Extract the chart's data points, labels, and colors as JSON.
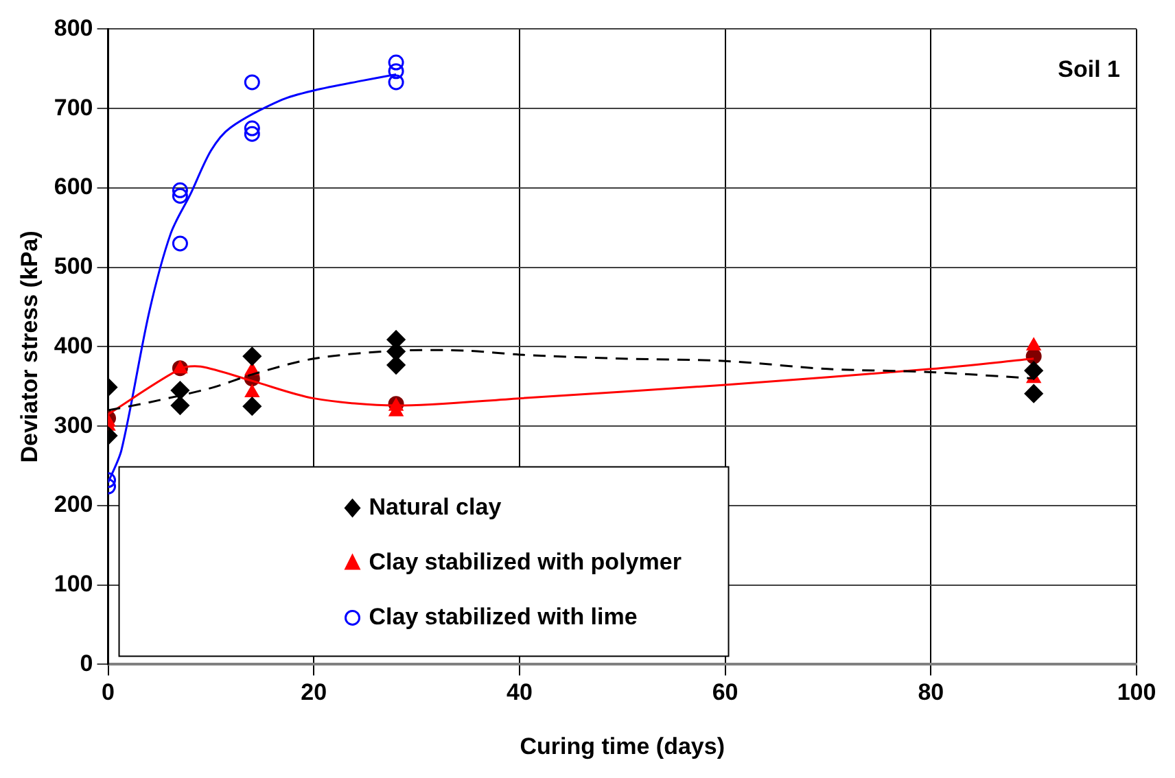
{
  "chart_data": {
    "type": "scatter",
    "xlabel": "Curing time (days)",
    "ylabel": "Deviator stress (kPa)",
    "xlim": [
      0,
      100
    ],
    "xticks": [
      0,
      20,
      40,
      60,
      80,
      100
    ],
    "ylim": [
      0,
      800
    ],
    "yticks": [
      0,
      100,
      200,
      300,
      400,
      500,
      600,
      700,
      800
    ],
    "grid": true,
    "legend": "bottom left",
    "annotations": [
      "Soil 1"
    ],
    "series": [
      {
        "type": "line",
        "color": "#000000",
        "marker": "none",
        "line_style": "dashed",
        "x": [
          0,
          4,
          10,
          14,
          20,
          28,
          35,
          40,
          50,
          60,
          70,
          80,
          90
        ],
        "values": [
          320,
          330,
          348,
          365,
          385,
          395,
          395,
          390,
          385,
          382,
          372,
          368,
          360
        ]
      },
      {
        "type": "line",
        "color": "#ff0000",
        "marker": "none",
        "line_style": "solid",
        "x": [
          0,
          7,
          9,
          14,
          20,
          28,
          40,
          60,
          80,
          90
        ],
        "values": [
          315,
          372,
          375,
          357,
          335,
          326,
          335,
          352,
          372,
          385
        ]
      },
      {
        "type": "line",
        "color": "#0000ff",
        "marker": "none",
        "line_style": "solid",
        "x": [
          0,
          1.3,
          4,
          6.1,
          8,
          10,
          11.9,
          16.9,
          20.1,
          24.7,
          28
        ],
        "values": [
          229,
          270,
          444,
          543,
          592,
          647,
          676,
          711,
          723,
          735,
          743
        ]
      },
      {
        "name": "Natural clay",
        "color": "#000000",
        "marker": "diamond",
        "x": [
          0,
          0,
          7,
          7,
          14,
          14,
          28,
          28,
          28,
          90,
          90
        ],
        "values": [
          349,
          288,
          345,
          326,
          388,
          325,
          409,
          394,
          377,
          370,
          341
        ]
      },
      {
        "name": "Clay stabilized with polymer",
        "color": "#ff0000",
        "marker": "triangle",
        "x": [
          0,
          0,
          7,
          14,
          14,
          28,
          28,
          90,
          90
        ],
        "values": [
          305,
          300,
          372,
          370,
          342,
          325,
          318,
          401,
          360
        ]
      },
      {
        "color": "#800000",
        "marker": "circle",
        "x": [
          0,
          7,
          14,
          28,
          90
        ],
        "values": [
          310,
          373,
          360,
          328,
          388
        ]
      },
      {
        "name": "Clay stabilized with lime",
        "color": "#0000ff",
        "marker": "circle",
        "x": [
          0,
          0,
          7,
          7,
          7,
          14,
          14,
          14,
          28,
          28,
          28
        ],
        "values": [
          232,
          224,
          597,
          590,
          530,
          733,
          675,
          668,
          758,
          747,
          733
        ]
      }
    ]
  }
}
